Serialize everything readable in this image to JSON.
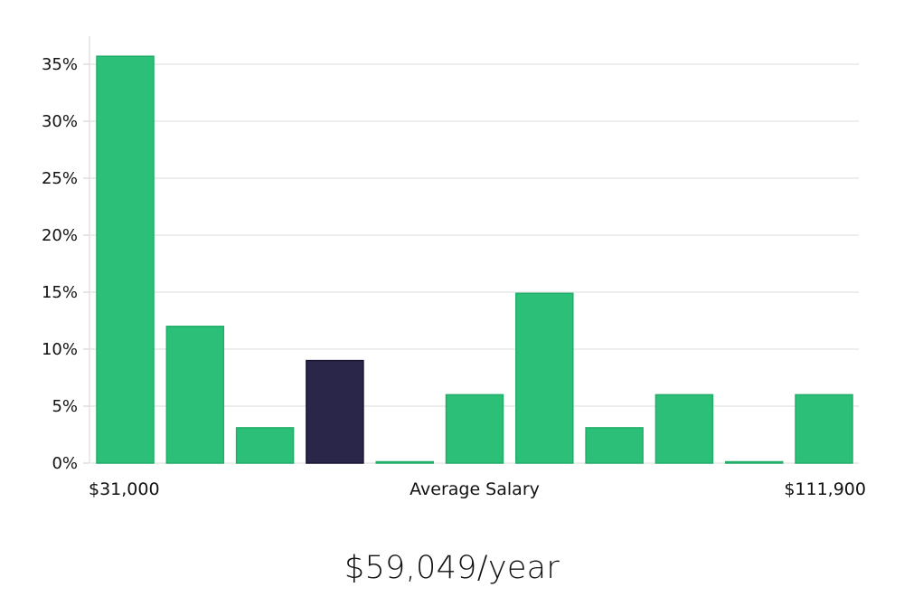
{
  "chart_data": {
    "type": "bar",
    "y_unit": "%",
    "ylim": [
      0,
      37
    ],
    "y_ticks": [
      0,
      5,
      10,
      15,
      20,
      25,
      30,
      35
    ],
    "y_tick_labels": [
      "0%",
      "5%",
      "10%",
      "15%",
      "20%",
      "25%",
      "30%",
      "35%"
    ],
    "grid": true,
    "x_min_label": "$31,000",
    "x_max_label": "$111,900",
    "xlabel": "Average Salary",
    "values": [
      35.7,
      12.0,
      3.1,
      9.0,
      0.1,
      6.0,
      14.9,
      3.1,
      6.0,
      0.1,
      6.0
    ],
    "highlight_index": 3,
    "colors": {
      "bar": "#2bbf77",
      "bar_border": "#22ad69",
      "highlight": "#2a2649",
      "highlight_border": "#171433"
    }
  },
  "summary": {
    "average_salary": "$59,049/year"
  }
}
